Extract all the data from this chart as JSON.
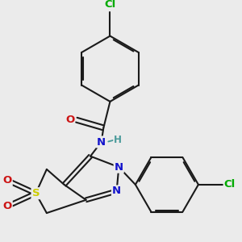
{
  "bg_color": "#ebebeb",
  "bond_color": "#1a1a1a",
  "bond_width": 1.5,
  "atom_colors": {
    "C": "#1a1a1a",
    "N": "#1414cc",
    "O": "#cc1414",
    "S": "#cccc00",
    "Cl": "#00aa00",
    "H": "#4a9a9a"
  },
  "font_size": 9.5
}
